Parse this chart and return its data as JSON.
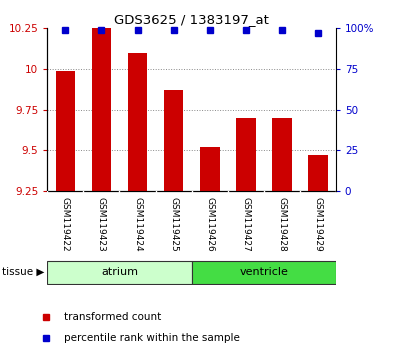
{
  "title": "GDS3625 / 1383197_at",
  "samples": [
    "GSM119422",
    "GSM119423",
    "GSM119424",
    "GSM119425",
    "GSM119426",
    "GSM119427",
    "GSM119428",
    "GSM119429"
  ],
  "bar_values": [
    9.99,
    10.26,
    10.1,
    9.87,
    9.52,
    9.7,
    9.7,
    9.47
  ],
  "percentile_values": [
    99,
    99,
    99,
    99,
    99,
    99,
    99,
    97
  ],
  "ylim": [
    9.25,
    10.25
  ],
  "yticks": [
    9.25,
    9.5,
    9.75,
    10.0,
    10.25
  ],
  "ytick_labels": [
    "9.25",
    "9.5",
    "9.75",
    "10",
    "10.25"
  ],
  "right_yticks": [
    0,
    25,
    50,
    75,
    100
  ],
  "right_ytick_labels": [
    "0",
    "25",
    "50",
    "75",
    "100%"
  ],
  "bar_color": "#cc0000",
  "blue_marker_color": "#0000cc",
  "tissue_groups": [
    {
      "label": "atrium",
      "start": 0,
      "end": 3,
      "color": "#ccffcc"
    },
    {
      "label": "ventricle",
      "start": 4,
      "end": 7,
      "color": "#44dd44"
    }
  ],
  "tissue_label": "tissue",
  "legend_items": [
    {
      "label": "transformed count",
      "color": "#cc0000"
    },
    {
      "label": "percentile rank within the sample",
      "color": "#0000cc"
    }
  ],
  "grid_yticks": [
    9.5,
    9.75,
    10.0
  ],
  "grid_color": "#888888",
  "bg_color": "#ffffff",
  "tick_bg_color": "#cccccc",
  "fig_width": 3.95,
  "fig_height": 3.54,
  "n_samples": 8
}
